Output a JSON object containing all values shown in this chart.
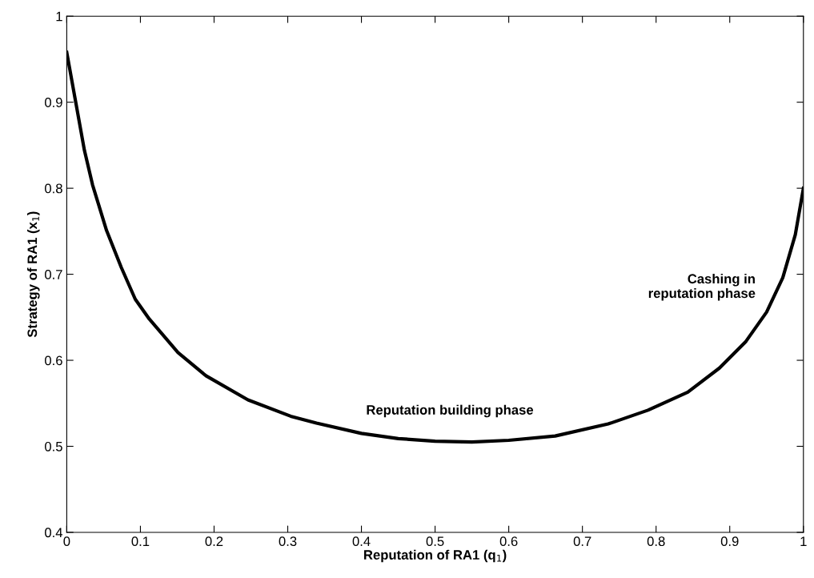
{
  "chart_data": {
    "type": "line",
    "xlabel": "Reputation of RA1 (q$_{1}$)",
    "ylabel": "Strategy of RA1 (x$_{1}$)",
    "series": [
      {
        "color": "#000000",
        "x": [
          0.0,
          0.012,
          0.024,
          0.035,
          0.054,
          0.074,
          0.093,
          0.112,
          0.151,
          0.189,
          0.246,
          0.304,
          0.339,
          0.4,
          0.45,
          0.5,
          0.55,
          0.6,
          0.663,
          0.735,
          0.789,
          0.843,
          0.886,
          0.922,
          0.95,
          0.972,
          0.989,
          1.0
        ],
        "values": [
          0.958,
          0.901,
          0.844,
          0.804,
          0.751,
          0.708,
          0.671,
          0.648,
          0.609,
          0.582,
          0.554,
          0.535,
          0.527,
          0.515,
          0.509,
          0.506,
          0.505,
          0.507,
          0.512,
          0.526,
          0.542,
          0.563,
          0.591,
          0.622,
          0.656,
          0.696,
          0.746,
          0.8
        ]
      }
    ],
    "xlim": [
      0,
      1
    ],
    "ylim": [
      0.4,
      1
    ],
    "xticks": [
      0,
      0.1,
      0.2,
      0.3,
      0.4,
      0.5,
      0.6,
      0.7,
      0.8,
      0.9,
      1
    ],
    "yticks": [
      0.4,
      0.5,
      0.6,
      0.7,
      0.8,
      0.9,
      1
    ],
    "annotations": [
      "Reputation building phase",
      "Cashing in\nreputation phase"
    ],
    "grid": false,
    "legend": false,
    "marker": "none",
    "line_style": "solid"
  }
}
